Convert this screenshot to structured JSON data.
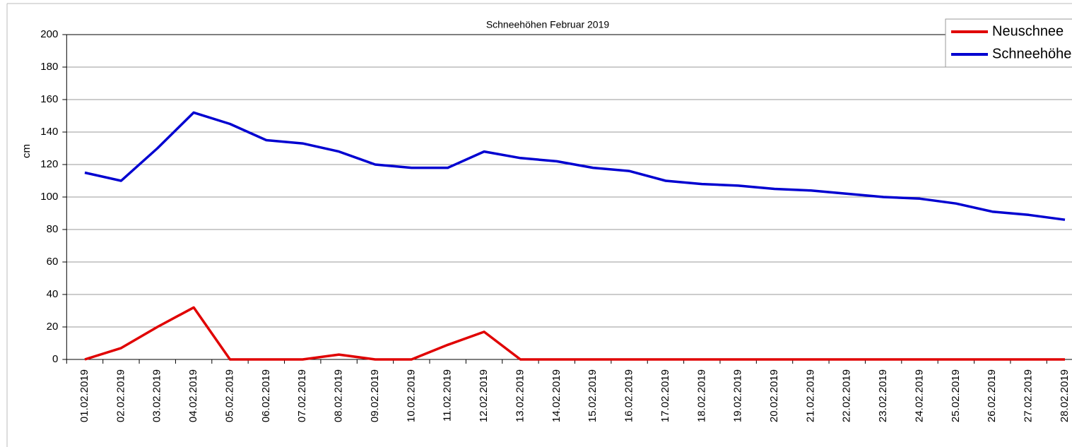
{
  "chart_data": {
    "type": "line",
    "title": "Schneehöhen Februar 2019",
    "y_label": "cm",
    "categories": [
      "01.02.2019",
      "02.02.2019",
      "03.02.2019",
      "04.02.2019",
      "05.02.2019",
      "06.02.2019",
      "07.02.2019",
      "08.02.2019",
      "09.02.2019",
      "10.02.2019",
      "11.02.2019",
      "12.02.2019",
      "13.02.2019",
      "14.02.2019",
      "15.02.2019",
      "16.02.2019",
      "17.02.2019",
      "18.02.2019",
      "19.02.2019",
      "20.02.2019",
      "21.02.2019",
      "22.02.2019",
      "23.02.2019",
      "24.02.2019",
      "25.02.2019",
      "26.02.2019",
      "27.02.2019",
      "28.02.2019"
    ],
    "series": [
      {
        "name": "Neuschnee",
        "color": "#e00000",
        "values": [
          0,
          7,
          20,
          32,
          0,
          0,
          0,
          3,
          0,
          0,
          9,
          17,
          0,
          0,
          0,
          0,
          0,
          0,
          0,
          0,
          0,
          0,
          0,
          0,
          0,
          0,
          0,
          0
        ]
      },
      {
        "name": "Schneehöhe",
        "color": "#0000d0",
        "values": [
          115,
          110,
          130,
          152,
          145,
          135,
          133,
          128,
          120,
          118,
          118,
          128,
          124,
          122,
          118,
          116,
          110,
          108,
          107,
          105,
          104,
          102,
          100,
          99,
          96,
          91,
          89,
          86
        ]
      }
    ],
    "ylim": [
      0,
      200
    ],
    "yticks": [
      0,
      20,
      40,
      60,
      80,
      100,
      120,
      140,
      160,
      180,
      200
    ],
    "grid": true,
    "legend": "top-right"
  }
}
